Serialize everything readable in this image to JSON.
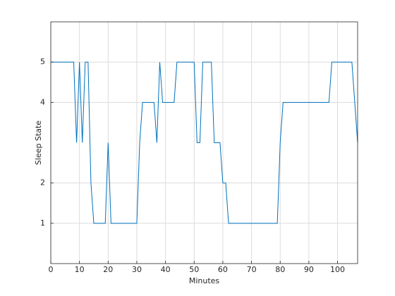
{
  "chart_data": {
    "type": "line",
    "xlabel": "Minutes",
    "ylabel": "Sleep State",
    "x": [
      0,
      1,
      2,
      3,
      4,
      5,
      6,
      7,
      8,
      9,
      10,
      11,
      12,
      13,
      14,
      15,
      16,
      17,
      18,
      19,
      20,
      21,
      22,
      23,
      24,
      25,
      26,
      27,
      28,
      29,
      30,
      31,
      32,
      33,
      34,
      35,
      36,
      37,
      38,
      39,
      40,
      41,
      42,
      43,
      44,
      45,
      46,
      47,
      48,
      49,
      50,
      51,
      52,
      53,
      54,
      55,
      56,
      57,
      58,
      59,
      60,
      61,
      62,
      63,
      64,
      65,
      66,
      67,
      68,
      69,
      70,
      71,
      72,
      73,
      74,
      75,
      76,
      77,
      78,
      79,
      80,
      81,
      82,
      83,
      84,
      85,
      86,
      87,
      88,
      89,
      90,
      91,
      92,
      93,
      94,
      95,
      96,
      97,
      98,
      99,
      100,
      101,
      102,
      103,
      104,
      105,
      106,
      107
    ],
    "series": [
      {
        "color": "#0072bd",
        "values": [
          5,
          5,
          5,
          5,
          5,
          5,
          5,
          5,
          5,
          3,
          5,
          3,
          5,
          5,
          2,
          1,
          1,
          1,
          1,
          1,
          3,
          1,
          1,
          1,
          1,
          1,
          1,
          1,
          1,
          1,
          1,
          3,
          4,
          4,
          4,
          4,
          4,
          3,
          5,
          4,
          4,
          4,
          4,
          4,
          5,
          5,
          5,
          5,
          5,
          5,
          5,
          3,
          3,
          5,
          5,
          5,
          5,
          3,
          3,
          3,
          2,
          2,
          1,
          1,
          1,
          1,
          1,
          1,
          1,
          1,
          1,
          1,
          1,
          1,
          1,
          1,
          1,
          1,
          1,
          1,
          3,
          4,
          4,
          4,
          4,
          4,
          4,
          4,
          4,
          4,
          4,
          4,
          4,
          4,
          4,
          4,
          4,
          4,
          5,
          5,
          5,
          5,
          5,
          5,
          5,
          5,
          4,
          3
        ]
      }
    ],
    "xlim": [
      0,
      107
    ],
    "ylim": [
      0,
      6
    ],
    "xticks": [
      0,
      10,
      20,
      30,
      40,
      50,
      60,
      70,
      80,
      90,
      100
    ],
    "yticks": [
      1,
      2,
      4,
      5
    ],
    "grid": true
  }
}
